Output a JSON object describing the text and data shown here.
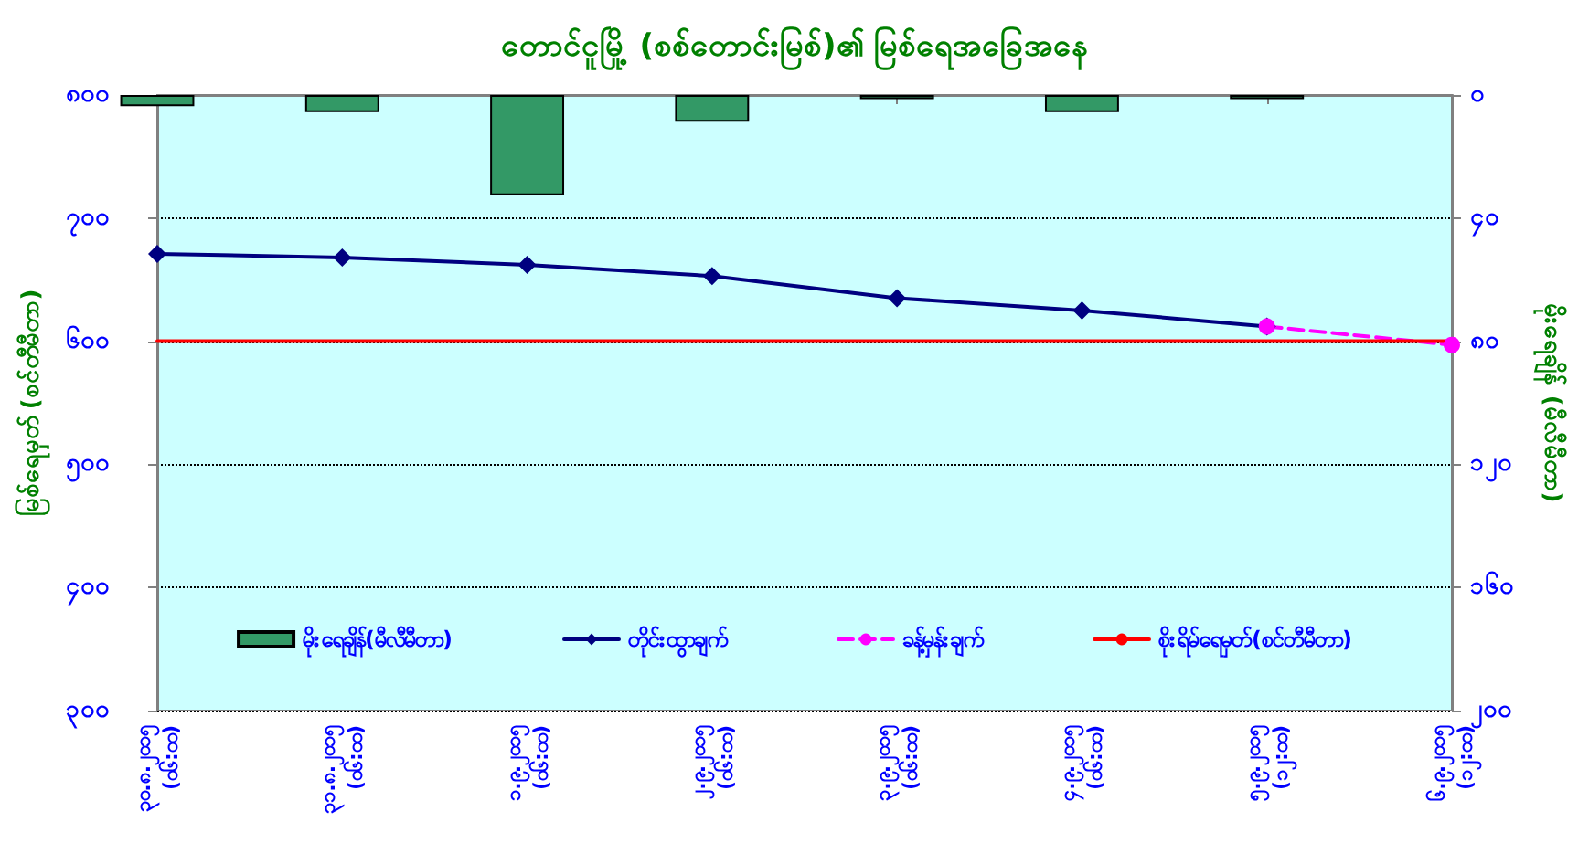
{
  "chart_data": {
    "type": "line",
    "title": "တောင်ငူမြို့ (စစ်တောင်းမြစ်)၏ မြစ်ရေအခြေအနေ",
    "ylabel": "မြစ်ရေမှတ် (စင်တီမီတာ)",
    "y2label": "မိုးရေချိန် (မီလီမီတာ)",
    "categories": [
      "၃၀.၈.၂၀၁၅\n(၀၆:၀၀)",
      "၃၁.၈.၂၀၁၅\n(၀၆:၀၀)",
      "၁.၉.၂၀၁၅\n(၀၆:၀၀)",
      "၂.၉.၂၀၁၅\n(၀၆:၀၀)",
      "၃.၉.၂၀၁၅\n(၀၆:၀၀)",
      "၄.၉.၂၀၁၅\n(၀၆:၀၀)",
      "၅.၉.၂၀၁၅\n(၁၂:၀၀)",
      "၆.၉.၂၀၁၅\n(၁၂:၀၀)"
    ],
    "series": [
      {
        "name": "မိုးရေချိန်(မီလီမီတာ)",
        "type": "bar",
        "axis": "y2",
        "color": "#339966",
        "values": [
          3.6,
          5.6,
          32.6,
          8.7,
          1.3,
          5.6,
          1.3,
          null
        ]
      },
      {
        "name": "တိုင်းထွာချက်",
        "color": "#000080",
        "marker": "diamond",
        "line_style": "solid",
        "values": [
          671,
          668,
          662,
          653,
          635,
          625,
          612,
          null
        ]
      },
      {
        "name": "ခန့်မှန်းချက်",
        "color": "#ff00ff",
        "marker": "circle",
        "line_style": "dashed",
        "values": [
          null,
          null,
          null,
          null,
          null,
          null,
          612,
          597
        ]
      },
      {
        "name": "စိုးရိမ်ရေမှတ်(စင်တီမီတာ)",
        "color": "#ff0000",
        "marker": "none",
        "line_style": "solid",
        "values": [
          600,
          600,
          600,
          600,
          600,
          600,
          600,
          600
        ]
      }
    ],
    "ylim": [
      300,
      800
    ],
    "yticks": [
      {
        "value": 300,
        "label": "၃၀၀"
      },
      {
        "value": 400,
        "label": "၄၀၀"
      },
      {
        "value": 500,
        "label": "၅၀၀"
      },
      {
        "value": 600,
        "label": "၆၀၀"
      },
      {
        "value": 700,
        "label": "၇၀၀"
      },
      {
        "value": 800,
        "label": "၈၀၀"
      }
    ],
    "y2lim": [
      200,
      0
    ],
    "y2ticks": [
      {
        "value": 0,
        "label": "၀"
      },
      {
        "value": 40,
        "label": "၄၀"
      },
      {
        "value": 80,
        "label": "၈၀"
      },
      {
        "value": 120,
        "label": "၁၂၀"
      },
      {
        "value": 160,
        "label": "၁၆၀"
      },
      {
        "value": 200,
        "label": "၂၀၀"
      }
    ],
    "grid": "y",
    "legend": "bottom"
  }
}
